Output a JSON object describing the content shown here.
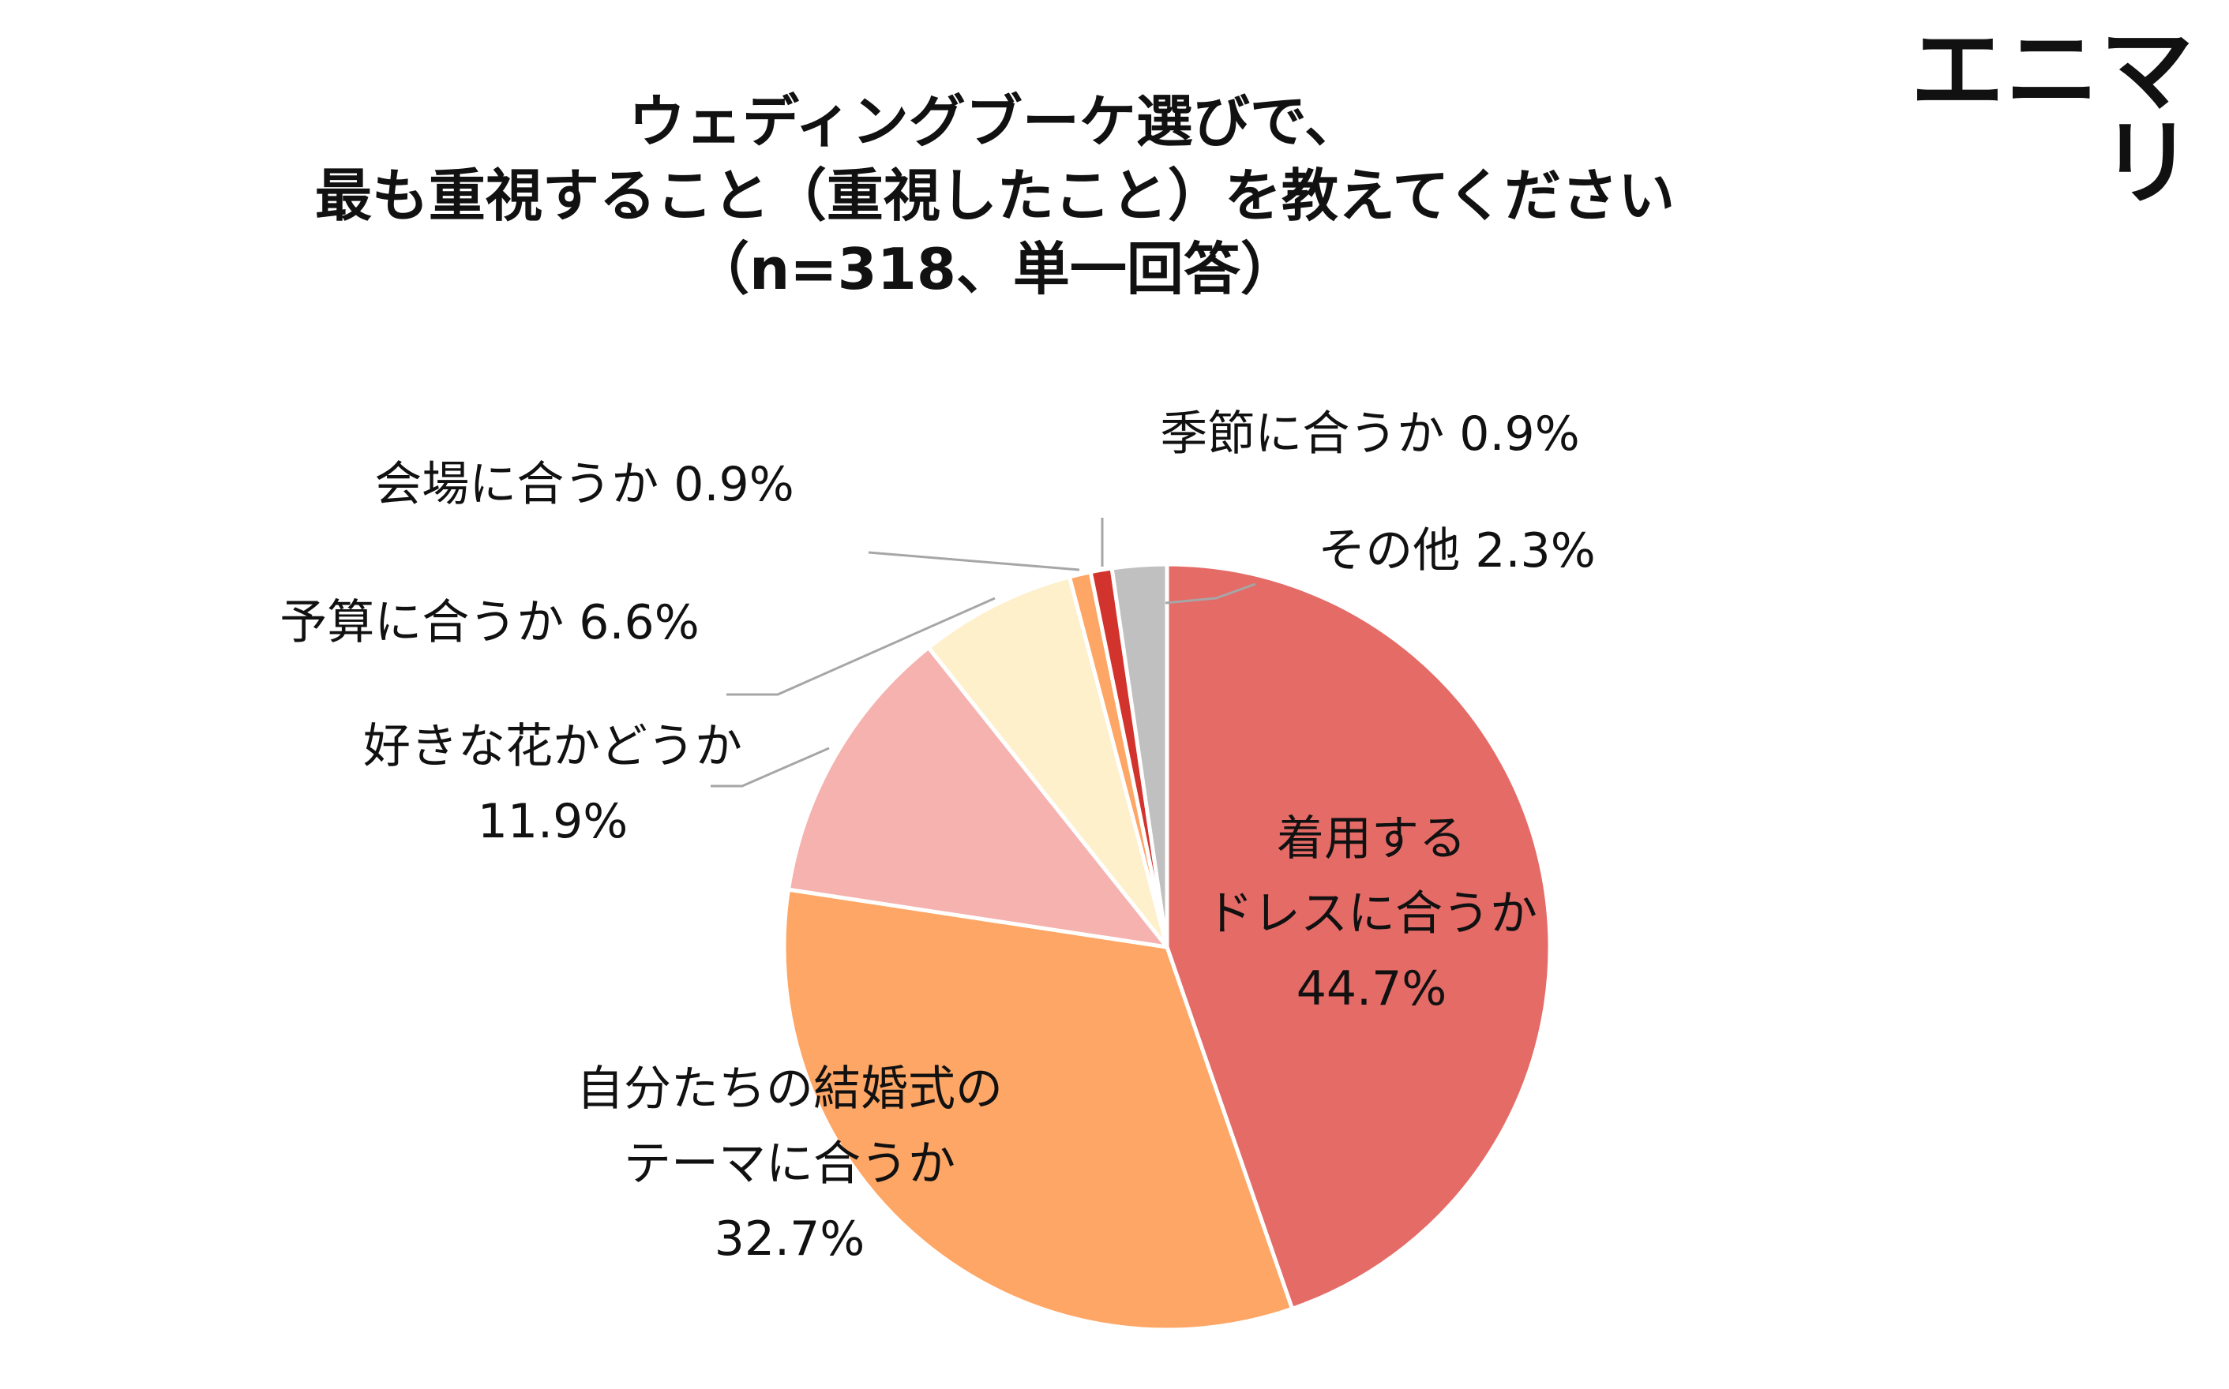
{
  "logo": "エニマリ",
  "title_lines": [
    "ウェディングブーケ選びで、",
    "最も重視すること（重視したこと）を教えてください",
    "（n=318、単一回答）"
  ],
  "colors": {
    "dress": "#e56b67",
    "theme": "#fea665",
    "flower": "#f5b2ae",
    "budget": "#fff0cc",
    "venue": "#fea665",
    "season": "#d2332d",
    "other": "#c0c0c0"
  },
  "chart_data": {
    "type": "pie",
    "start_angle": "12 o'clock",
    "direction": "clockwise",
    "slices": [
      {
        "label": "着用するドレスに合うか",
        "value": 44.7,
        "display": "44.7%",
        "color_key": "dress"
      },
      {
        "label": "自分たちの結婚式のテーマに合うか",
        "value": 32.7,
        "display": "32.7%",
        "color_key": "theme"
      },
      {
        "label": "好きな花かどうか",
        "value": 11.9,
        "display": "11.9%",
        "color_key": "flower"
      },
      {
        "label": "予算に合うか",
        "value": 6.6,
        "display": "6.6%",
        "color_key": "budget"
      },
      {
        "label": "会場に合うか",
        "value": 0.9,
        "display": "0.9%",
        "color_key": "venue"
      },
      {
        "label": "季節に合うか",
        "value": 0.9,
        "display": "0.9%",
        "color_key": "season"
      },
      {
        "label": "その他",
        "value": 2.3,
        "display": "2.3%",
        "color_key": "other"
      }
    ],
    "label_text": [
      [
        "着用する",
        "ドレスに合うか",
        "44.7%"
      ],
      [
        "自分たちの結婚式の",
        "テーマに合うか",
        "32.7%"
      ],
      [
        "好きな花かどうか",
        "11.9%"
      ],
      [
        "予算に合うか 6.6%"
      ],
      [
        "会場に合うか 0.9%"
      ],
      [
        "季節に合うか 0.9%"
      ],
      [
        "その他 2.3%"
      ]
    ]
  }
}
